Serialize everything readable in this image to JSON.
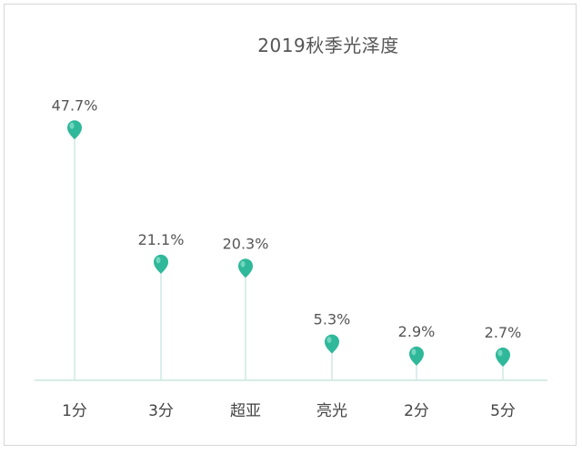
{
  "chart_data": {
    "type": "lollipop",
    "title": "2019秋季光泽度",
    "categories": [
      "1分",
      "3分",
      "超亚",
      "亮光",
      "2分",
      "5分"
    ],
    "values": [
      47.7,
      21.1,
      20.3,
      5.3,
      2.9,
      2.7
    ],
    "value_labels": [
      "47.7%",
      "21.1%",
      "20.3%",
      "5.3%",
      "2.9%",
      "2.7%"
    ],
    "ylim": [
      0,
      50
    ],
    "grid": false,
    "legend": "none",
    "colors": {
      "marker": "#2fb89a",
      "marker_highlight": "#8fe3cf",
      "stem": "#cfe9e2",
      "baseline": "#d6ece6"
    }
  }
}
